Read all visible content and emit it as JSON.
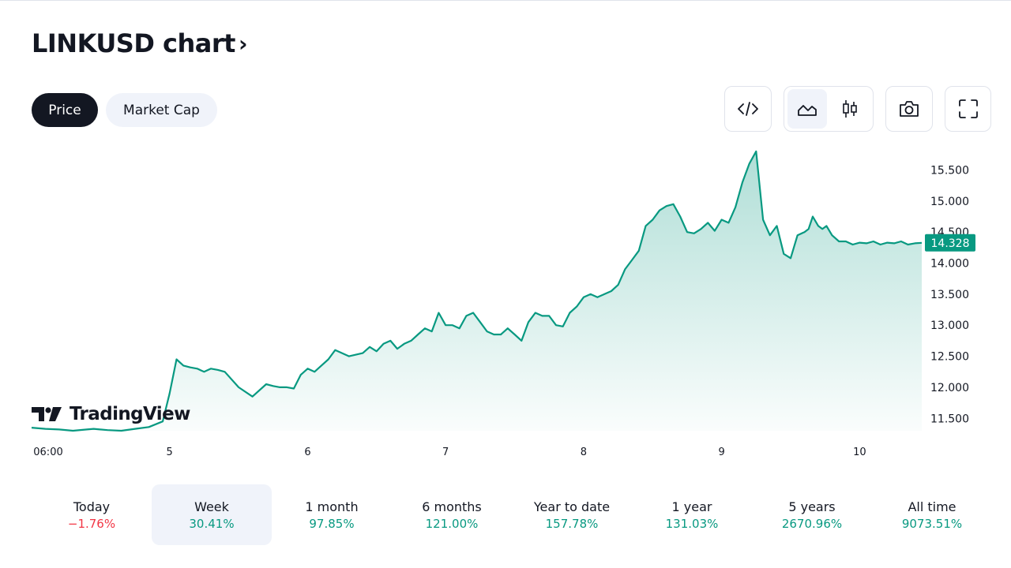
{
  "page": {
    "title": "LINKUSD chart",
    "title_chevron": "›"
  },
  "tabs": [
    {
      "label": "Price",
      "active": true
    },
    {
      "label": "Market Cap",
      "active": false
    }
  ],
  "toolbar": {
    "embed_icon": "code-icon",
    "chart_types": [
      "area-chart-icon",
      "candles-icon"
    ],
    "selected_chart_type": "area",
    "snapshot_icon": "camera-icon",
    "fullscreen_icon": "fullscreen-icon"
  },
  "colors": {
    "line": "#089981",
    "positive": "#089981",
    "negative": "#f23645",
    "selected_bg": "#f0f3fa"
  },
  "logo": {
    "text": "TradingView"
  },
  "chart_data": {
    "type": "area",
    "title": "",
    "xlabel": "",
    "ylabel": "",
    "x_tick_labels": [
      "06:00",
      "5",
      "6",
      "7",
      "8",
      "9",
      "10"
    ],
    "y_tick_labels": [
      "11.500",
      "12.000",
      "12.500",
      "13.000",
      "13.500",
      "14.000",
      "14.500",
      "15.000",
      "15.500"
    ],
    "ylim": [
      11.3,
      15.85
    ],
    "x_domain": [
      0,
      6.45
    ],
    "y_axis_position": "right",
    "grid": false,
    "last_price": "14.328",
    "series": [
      {
        "x": [
          0,
          0.1,
          0.2,
          0.3,
          0.4,
          0.45,
          0.55,
          0.65,
          0.75,
          0.85,
          0.95,
          1.0,
          1.05,
          1.1,
          1.15,
          1.2,
          1.25,
          1.3,
          1.35,
          1.4,
          1.5,
          1.6,
          1.7,
          1.75,
          1.8,
          1.85,
          1.9,
          1.95,
          2.0,
          2.05,
          2.1,
          2.15,
          2.2,
          2.3,
          2.4,
          2.45,
          2.5,
          2.55,
          2.6,
          2.65,
          2.7,
          2.75,
          2.8,
          2.85,
          2.9,
          2.95,
          3.0,
          3.05,
          3.1,
          3.15,
          3.2,
          3.25,
          3.3,
          3.35,
          3.4,
          3.45,
          3.5,
          3.55,
          3.6,
          3.65,
          3.7,
          3.75,
          3.8,
          3.85,
          3.9,
          3.95,
          4.0,
          4.05,
          4.1,
          4.15,
          4.2,
          4.25,
          4.3,
          4.35,
          4.4,
          4.45,
          4.5,
          4.55,
          4.6,
          4.65,
          4.7,
          4.75,
          4.8,
          4.85,
          4.9,
          4.95,
          5.0,
          5.05,
          5.1,
          5.15,
          5.2,
          5.25,
          5.3,
          5.35,
          5.4,
          5.45,
          5.5,
          5.55,
          5.6,
          5.63,
          5.66,
          5.7,
          5.73,
          5.76,
          5.8,
          5.85,
          5.9,
          5.95,
          6.0,
          6.05,
          6.1,
          6.15,
          6.2,
          6.25,
          6.3,
          6.35,
          6.4,
          6.45
        ],
        "y": [
          11.35,
          11.33,
          11.32,
          11.3,
          11.32,
          11.33,
          11.31,
          11.3,
          11.33,
          11.36,
          11.45,
          11.9,
          12.45,
          12.35,
          12.32,
          12.3,
          12.25,
          12.3,
          12.28,
          12.25,
          12.0,
          11.85,
          12.05,
          12.02,
          12.0,
          12.0,
          11.98,
          12.2,
          12.3,
          12.25,
          12.35,
          12.45,
          12.6,
          12.5,
          12.55,
          12.65,
          12.58,
          12.7,
          12.75,
          12.62,
          12.7,
          12.75,
          12.85,
          12.95,
          12.9,
          13.2,
          13.0,
          13.0,
          12.95,
          13.15,
          13.2,
          13.05,
          12.9,
          12.85,
          12.85,
          12.95,
          12.85,
          12.75,
          13.05,
          13.2,
          13.15,
          13.15,
          13.0,
          12.98,
          13.2,
          13.3,
          13.45,
          13.5,
          13.45,
          13.5,
          13.55,
          13.65,
          13.9,
          14.05,
          14.2,
          14.6,
          14.7,
          14.85,
          14.92,
          14.95,
          14.75,
          14.5,
          14.48,
          14.55,
          14.65,
          14.52,
          14.7,
          14.65,
          14.9,
          15.3,
          15.6,
          15.8,
          14.7,
          14.45,
          14.6,
          14.15,
          14.08,
          14.45,
          14.5,
          14.55,
          14.75,
          14.6,
          14.55,
          14.6,
          14.45,
          14.35,
          14.35,
          14.3,
          14.33,
          14.32,
          14.35,
          14.3,
          14.33,
          14.32,
          14.35,
          14.3,
          14.32,
          14.328
        ]
      }
    ]
  },
  "periods": [
    {
      "label": "Today",
      "value": "−1.76%",
      "trend": "negative",
      "selected": false
    },
    {
      "label": "Week",
      "value": "30.41%",
      "trend": "positive",
      "selected": true
    },
    {
      "label": "1 month",
      "value": "97.85%",
      "trend": "positive",
      "selected": false
    },
    {
      "label": "6 months",
      "value": "121.00%",
      "trend": "positive",
      "selected": false
    },
    {
      "label": "Year to date",
      "value": "157.78%",
      "trend": "positive",
      "selected": false
    },
    {
      "label": "1 year",
      "value": "131.03%",
      "trend": "positive",
      "selected": false
    },
    {
      "label": "5 years",
      "value": "2670.96%",
      "trend": "positive",
      "selected": false
    },
    {
      "label": "All time",
      "value": "9073.51%",
      "trend": "positive",
      "selected": false
    }
  ]
}
